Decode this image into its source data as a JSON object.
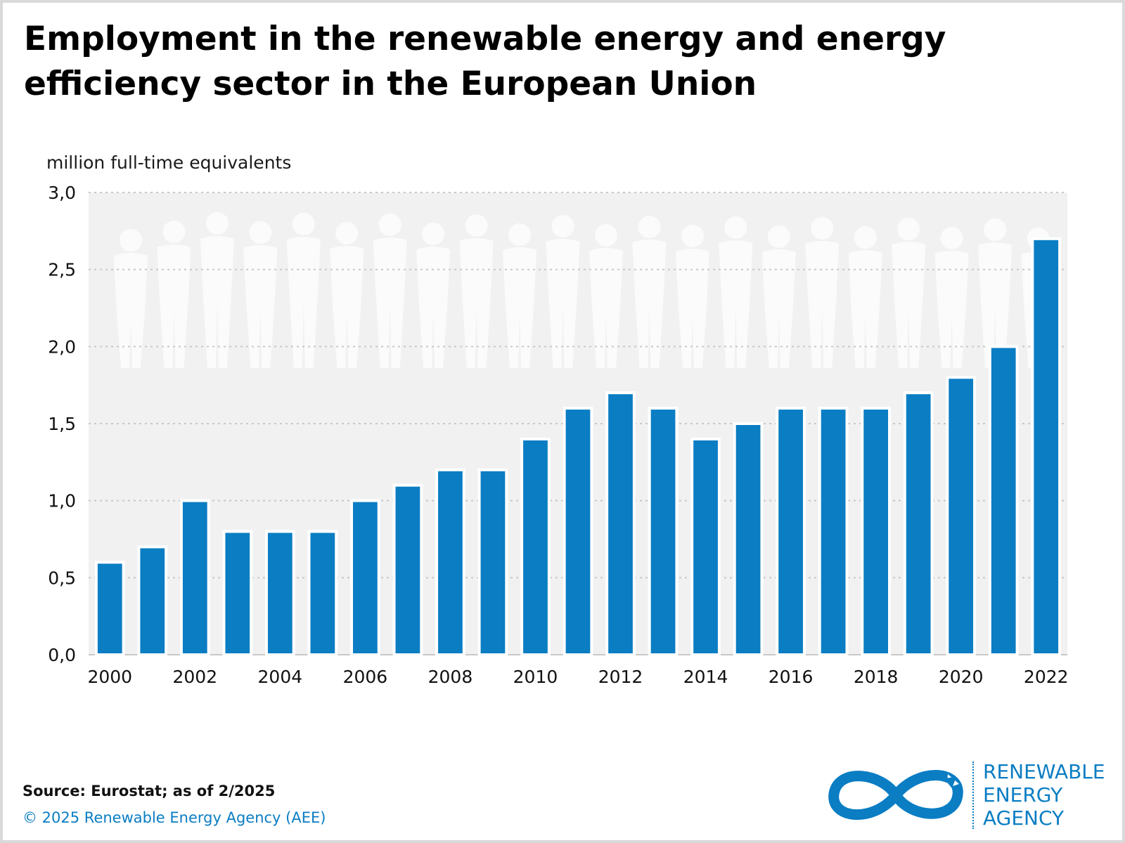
{
  "title": "Employment in the renewable energy and energy efficiency sector in the European Union",
  "unit_label": "million full-time equivalents",
  "source": "Source: Eurostat; as of 2/2025",
  "copyright": "© 2025 Renewable Energy Agency (AEE)",
  "logo": {
    "line1": "RENEWABLE",
    "line2": "ENERGY",
    "line3": "AGENCY"
  },
  "colors": {
    "bar": "#0a7dc3",
    "plot_bg": "#f1f1f1",
    "silhouette": "#fbfbfb",
    "accent": "#0a7dc3"
  },
  "chart_data": {
    "type": "bar",
    "title": "Employment in the renewable energy and energy efficiency sector in the European Union",
    "ylabel": "million full-time equivalents",
    "xlabel": "",
    "ylim": [
      0,
      3
    ],
    "yticks": [
      "0,0",
      "0,5",
      "1,0",
      "1,5",
      "2,0",
      "2,5",
      "3,0"
    ],
    "categories": [
      "2000",
      "2001",
      "2002",
      "2003",
      "2004",
      "2005",
      "2006",
      "2007",
      "2008",
      "2009",
      "2010",
      "2011",
      "2012",
      "2013",
      "2014",
      "2015",
      "2016",
      "2017",
      "2018",
      "2019",
      "2020",
      "2021",
      "2022"
    ],
    "xtick_labels": [
      "2000",
      "",
      "2002",
      "",
      "2004",
      "",
      "2006",
      "",
      "2008",
      "",
      "2010",
      "",
      "2012",
      "",
      "2014",
      "",
      "2016",
      "",
      "2018",
      "",
      "2020",
      "",
      "2022"
    ],
    "values": [
      0.6,
      0.7,
      1.0,
      0.8,
      0.8,
      0.8,
      1.0,
      1.1,
      1.2,
      1.2,
      1.4,
      1.6,
      1.7,
      1.6,
      1.4,
      1.5,
      1.6,
      1.6,
      1.6,
      1.7,
      1.8,
      2.0,
      2.7
    ],
    "grid": true
  }
}
